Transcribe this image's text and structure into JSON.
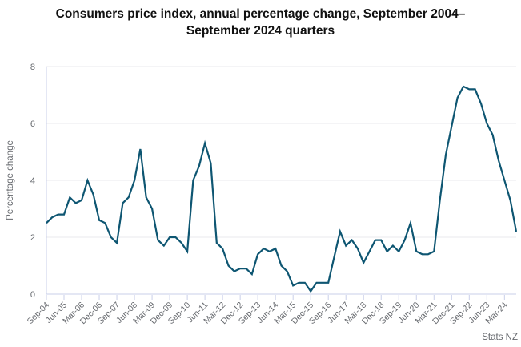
{
  "title": "Consumers price index, annual percentage change, September 2004–September 2024 quarters",
  "source": "Stats NZ",
  "colors": {
    "line": "#0e5672",
    "gridline": "#e8e8ec",
    "axis": "#c9cfe9",
    "tick_label": "#66696e",
    "axis_title": "#66696e",
    "title": "#111111",
    "background": "#ffffff"
  },
  "chart_data": {
    "type": "line",
    "title": "Consumers price index, annual percentage change, September 2004–September 2024 quarters",
    "xlabel": "",
    "ylabel": "Percentage change",
    "ylim": [
      0,
      8
    ],
    "yticks": [
      0,
      2,
      4,
      6,
      8
    ],
    "grid": "horizontal",
    "legend_position": "none",
    "xtick_every": 3,
    "x": [
      "Sep-04",
      "Dec-04",
      "Mar-05",
      "Jun-05",
      "Sep-05",
      "Dec-05",
      "Mar-06",
      "Jun-06",
      "Sep-06",
      "Dec-06",
      "Mar-07",
      "Jun-07",
      "Sep-07",
      "Dec-07",
      "Mar-08",
      "Jun-08",
      "Sep-08",
      "Dec-08",
      "Mar-09",
      "Jun-09",
      "Sep-09",
      "Dec-09",
      "Mar-10",
      "Jun-10",
      "Sep-10",
      "Dec-10",
      "Mar-11",
      "Jun-11",
      "Sep-11",
      "Dec-11",
      "Mar-12",
      "Jun-12",
      "Sep-12",
      "Dec-12",
      "Mar-13",
      "Jun-13",
      "Sep-13",
      "Dec-13",
      "Mar-14",
      "Jun-14",
      "Sep-14",
      "Dec-14",
      "Mar-15",
      "Jun-15",
      "Sep-15",
      "Dec-15",
      "Mar-16",
      "Jun-16",
      "Sep-16",
      "Dec-16",
      "Mar-17",
      "Jun-17",
      "Sep-17",
      "Dec-17",
      "Mar-18",
      "Jun-18",
      "Sep-18",
      "Dec-18",
      "Mar-19",
      "Jun-19",
      "Sep-19",
      "Dec-19",
      "Mar-20",
      "Jun-20",
      "Sep-20",
      "Dec-20",
      "Mar-21",
      "Jun-21",
      "Sep-21",
      "Dec-21",
      "Mar-22",
      "Jun-22",
      "Sep-22",
      "Dec-22",
      "Mar-23",
      "Jun-23",
      "Sep-23",
      "Dec-23",
      "Mar-24",
      "Jun-24",
      "Sep-24"
    ],
    "series": [
      {
        "name": "Consumers price index, annual percentage change",
        "values": [
          2.5,
          2.7,
          2.8,
          2.8,
          3.4,
          3.2,
          3.3,
          4.0,
          3.5,
          2.6,
          2.5,
          2.0,
          1.8,
          3.2,
          3.4,
          4.0,
          5.1,
          3.4,
          3.0,
          1.9,
          1.7,
          2.0,
          2.0,
          1.8,
          1.5,
          4.0,
          4.5,
          5.3,
          4.6,
          1.8,
          1.6,
          1.0,
          0.8,
          0.9,
          0.9,
          0.7,
          1.4,
          1.6,
          1.5,
          1.6,
          1.0,
          0.8,
          0.3,
          0.4,
          0.4,
          0.1,
          0.4,
          0.4,
          0.4,
          1.3,
          2.2,
          1.7,
          1.9,
          1.6,
          1.1,
          1.5,
          1.9,
          1.9,
          1.5,
          1.7,
          1.5,
          1.9,
          2.5,
          1.5,
          1.4,
          1.4,
          1.5,
          3.3,
          4.9,
          5.9,
          6.9,
          7.3,
          7.2,
          7.2,
          6.7,
          6.0,
          5.6,
          4.7,
          4.0,
          3.3,
          2.2
        ]
      }
    ]
  }
}
